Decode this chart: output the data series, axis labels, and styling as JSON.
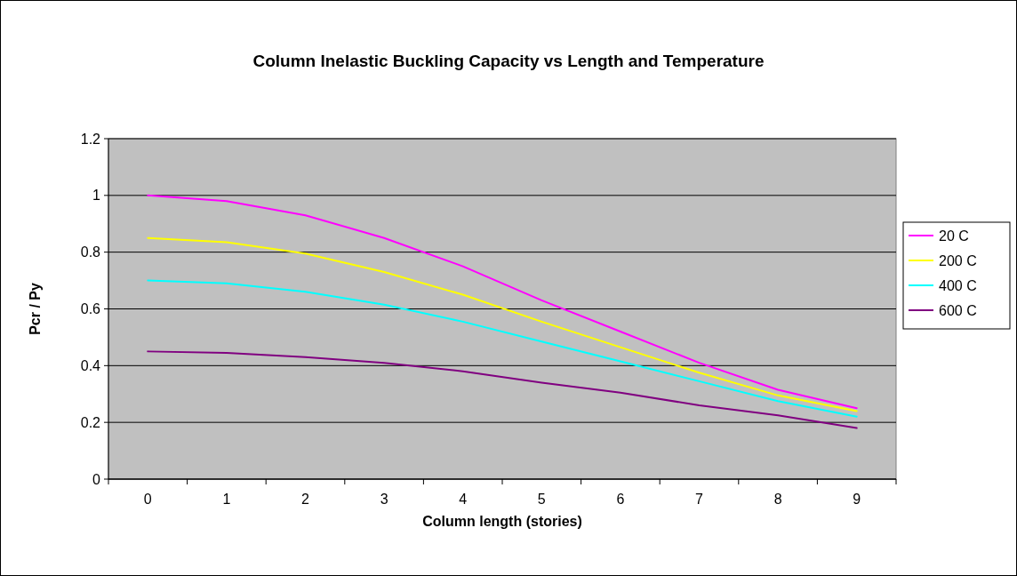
{
  "chart_data": {
    "type": "line",
    "title": "Column Inelastic Buckling Capacity vs Length and Temperature",
    "xlabel": "Column length (stories)",
    "ylabel": "Pcr / Py",
    "categories": [
      "0",
      "1",
      "2",
      "3",
      "4",
      "5",
      "6",
      "7",
      "8",
      "9"
    ],
    "series": [
      {
        "name": "20 C",
        "color": "#ff00ff",
        "values": [
          1.0,
          0.98,
          0.93,
          0.85,
          0.75,
          0.63,
          0.52,
          0.41,
          0.315,
          0.25
        ]
      },
      {
        "name": "200 C",
        "color": "#ffff00",
        "values": [
          0.85,
          0.835,
          0.795,
          0.73,
          0.65,
          0.555,
          0.465,
          0.375,
          0.295,
          0.24
        ]
      },
      {
        "name": "400 C",
        "color": "#00ffff",
        "values": [
          0.7,
          0.69,
          0.66,
          0.615,
          0.555,
          0.485,
          0.415,
          0.345,
          0.275,
          0.22
        ]
      },
      {
        "name": "600 C",
        "color": "#800080",
        "values": [
          0.45,
          0.445,
          0.43,
          0.41,
          0.38,
          0.34,
          0.305,
          0.26,
          0.225,
          0.18
        ]
      }
    ],
    "ylim": [
      0,
      1.2
    ],
    "yticks": [
      0,
      0.2,
      0.4,
      0.6,
      0.8,
      1,
      1.2
    ],
    "grid": "y",
    "legend": "right",
    "marker": "none",
    "line_style": "solid"
  }
}
